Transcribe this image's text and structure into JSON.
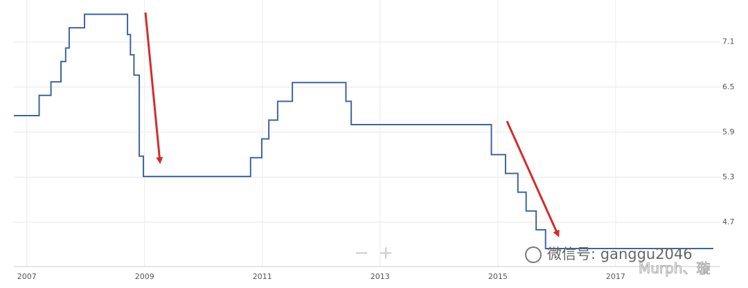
{
  "chart_data": {
    "type": "step-line",
    "x": [
      2006.78,
      2007.21,
      2007.41,
      2007.58,
      2007.66,
      2007.72,
      2007.98,
      2008.71,
      2008.76,
      2008.82,
      2008.91,
      2008.98,
      2010.8,
      2010.99,
      2011.11,
      2011.26,
      2011.51,
      2012.42,
      2012.51,
      2014.89,
      2015.13,
      2015.34,
      2015.48,
      2015.65,
      2015.81,
      2018.66
    ],
    "series": [
      {
        "color": "#3f63a0",
        "values": [
          6.12,
          6.39,
          6.57,
          6.84,
          7.02,
          7.29,
          7.47,
          7.2,
          6.93,
          6.66,
          5.58,
          5.31,
          5.56,
          5.81,
          6.06,
          6.31,
          6.56,
          6.31,
          6.0,
          5.6,
          5.35,
          5.1,
          4.85,
          4.6,
          4.35,
          4.35
        ]
      }
    ],
    "xlim": [
      2006.78,
      2018.66
    ],
    "xticks": [
      2007,
      2009,
      2011,
      2013,
      2015,
      2017
    ],
    "ylim": [
      4.11,
      7.66
    ],
    "yticks": [
      4.7,
      5.3,
      5.9,
      6.5,
      7.1
    ],
    "grid": true
  },
  "zoom": {
    "out": "−",
    "in": "+"
  },
  "watermark": {
    "wechat": "微信号: ganggu2046",
    "author": "Murph、璇"
  }
}
